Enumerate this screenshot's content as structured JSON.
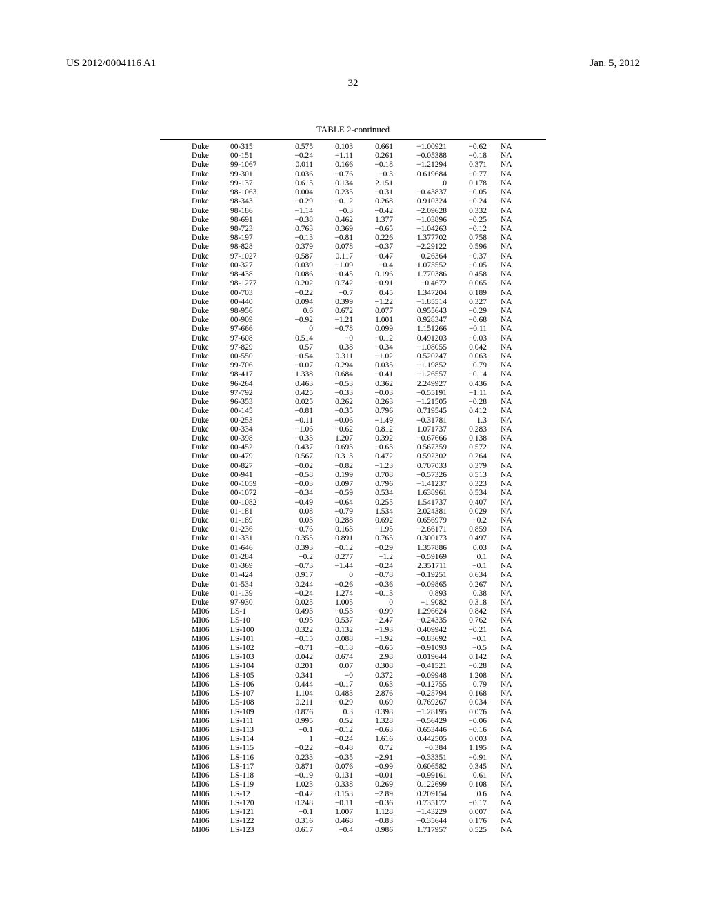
{
  "header": {
    "pub_number": "US 2012/0004116 A1",
    "pub_date": "Jan. 5, 2012"
  },
  "page_number": "32",
  "table": {
    "title": "TABLE 2-continued",
    "rows": [
      [
        "Duke",
        "00-315",
        "0.575",
        "0.103",
        "0.661",
        "−1.00921",
        "−0.62",
        "NA"
      ],
      [
        "Duke",
        "00-151",
        "−0.24",
        "−1.11",
        "0.261",
        "−0.05388",
        "−0.18",
        "NA"
      ],
      [
        "Duke",
        "99-1067",
        "0.011",
        "0.166",
        "−0.18",
        "−1.21294",
        "0.371",
        "NA"
      ],
      [
        "Duke",
        "99-301",
        "0.036",
        "−0.76",
        "−0.3",
        "0.619684",
        "−0.77",
        "NA"
      ],
      [
        "Duke",
        "99-137",
        "0.615",
        "0.134",
        "2.151",
        "0",
        "0.178",
        "NA"
      ],
      [
        "Duke",
        "98-1063",
        "0.004",
        "0.235",
        "−0.31",
        "−0.43837",
        "−0.05",
        "NA"
      ],
      [
        "Duke",
        "98-343",
        "−0.29",
        "−0.12",
        "0.268",
        "0.910324",
        "−0.24",
        "NA"
      ],
      [
        "Duke",
        "98-186",
        "−1.14",
        "−0.3",
        "−0.42",
        "−2.09628",
        "0.332",
        "NA"
      ],
      [
        "Duke",
        "98-691",
        "−0.38",
        "0.462",
        "1.377",
        "−1.03896",
        "−0.25",
        "NA"
      ],
      [
        "Duke",
        "98-723",
        "0.763",
        "0.369",
        "−0.65",
        "−1.04263",
        "−0.12",
        "NA"
      ],
      [
        "Duke",
        "98-197",
        "−0.13",
        "−0.81",
        "0.226",
        "1.377702",
        "0.758",
        "NA"
      ],
      [
        "Duke",
        "98-828",
        "0.379",
        "0.078",
        "−0.37",
        "−2.29122",
        "0.596",
        "NA"
      ],
      [
        "Duke",
        "97-1027",
        "0.587",
        "0.117",
        "−0.47",
        "0.26364",
        "−0.37",
        "NA"
      ],
      [
        "Duke",
        "00-327",
        "0.039",
        "−1.09",
        "−0.4",
        "1.075552",
        "−0.05",
        "NA"
      ],
      [
        "Duke",
        "98-438",
        "0.086",
        "−0.45",
        "0.196",
        "1.770386",
        "0.458",
        "NA"
      ],
      [
        "Duke",
        "98-1277",
        "0.202",
        "0.742",
        "−0.91",
        "−0.4672",
        "0.065",
        "NA"
      ],
      [
        "Duke",
        "00-703",
        "−0.22",
        "−0.7",
        "0.45",
        "1.347204",
        "0.189",
        "NA"
      ],
      [
        "Duke",
        "00-440",
        "0.094",
        "0.399",
        "−1.22",
        "−1.85514",
        "0.327",
        "NA"
      ],
      [
        "Duke",
        "98-956",
        "0.6",
        "0.672",
        "0.077",
        "0.955643",
        "−0.29",
        "NA"
      ],
      [
        "Duke",
        "00-909",
        "−0.92",
        "−1.21",
        "1.001",
        "0.928347",
        "−0.68",
        "NA"
      ],
      [
        "Duke",
        "97-666",
        "0",
        "−0.78",
        "0.099",
        "1.151266",
        "−0.11",
        "NA"
      ],
      [
        "Duke",
        "97-608",
        "0.514",
        "−0",
        "−0.12",
        "0.491203",
        "−0.03",
        "NA"
      ],
      [
        "Duke",
        "97-829",
        "0.57",
        "0.38",
        "−0.34",
        "−1.08055",
        "0.042",
        "NA"
      ],
      [
        "Duke",
        "00-550",
        "−0.54",
        "0.311",
        "−1.02",
        "0.520247",
        "0.063",
        "NA"
      ],
      [
        "Duke",
        "99-706",
        "−0.07",
        "0.294",
        "0.035",
        "−1.19852",
        "0.79",
        "NA"
      ],
      [
        "Duke",
        "98-417",
        "1.338",
        "0.684",
        "−0.41",
        "−1.26557",
        "−0.14",
        "NA"
      ],
      [
        "Duke",
        "96-264",
        "0.463",
        "−0.53",
        "0.362",
        "2.249927",
        "0.436",
        "NA"
      ],
      [
        "Duke",
        "97-792",
        "0.425",
        "−0.33",
        "−0.03",
        "−0.55191",
        "−1.11",
        "NA"
      ],
      [
        "Duke",
        "96-353",
        "0.025",
        "0.262",
        "0.263",
        "−1.21505",
        "−0.28",
        "NA"
      ],
      [
        "Duke",
        "00-145",
        "−0.81",
        "−0.35",
        "0.796",
        "0.719545",
        "0.412",
        "NA"
      ],
      [
        "Duke",
        "00-253",
        "−0.11",
        "−0.06",
        "−1.49",
        "−0.31781",
        "1.3",
        "NA"
      ],
      [
        "Duke",
        "00-334",
        "−1.06",
        "−0.62",
        "0.812",
        "1.071737",
        "0.283",
        "NA"
      ],
      [
        "Duke",
        "00-398",
        "−0.33",
        "1.207",
        "0.392",
        "−0.67666",
        "0.138",
        "NA"
      ],
      [
        "Duke",
        "00-452",
        "0.437",
        "0.693",
        "−0.63",
        "0.567359",
        "0.572",
        "NA"
      ],
      [
        "Duke",
        "00-479",
        "0.567",
        "0.313",
        "0.472",
        "0.592302",
        "0.264",
        "NA"
      ],
      [
        "Duke",
        "00-827",
        "−0.02",
        "−0.82",
        "−1.23",
        "0.707033",
        "0.379",
        "NA"
      ],
      [
        "Duke",
        "00-941",
        "−0.58",
        "0.199",
        "0.708",
        "−0.57326",
        "0.513",
        "NA"
      ],
      [
        "Duke",
        "00-1059",
        "−0.03",
        "0.097",
        "0.796",
        "−1.41237",
        "0.323",
        "NA"
      ],
      [
        "Duke",
        "00-1072",
        "−0.34",
        "−0.59",
        "0.534",
        "1.638961",
        "0.534",
        "NA"
      ],
      [
        "Duke",
        "00-1082",
        "−0.49",
        "−0.64",
        "0.255",
        "1.541737",
        "0.407",
        "NA"
      ],
      [
        "Duke",
        "01-181",
        "0.08",
        "−0.79",
        "1.534",
        "2.024381",
        "0.029",
        "NA"
      ],
      [
        "Duke",
        "01-189",
        "0.03",
        "0.288",
        "0.692",
        "0.656979",
        "−0.2",
        "NA"
      ],
      [
        "Duke",
        "01-236",
        "−0.76",
        "0.163",
        "−1.95",
        "−2.66171",
        "0.859",
        "NA"
      ],
      [
        "Duke",
        "01-331",
        "0.355",
        "0.891",
        "0.765",
        "0.300173",
        "0.497",
        "NA"
      ],
      [
        "Duke",
        "01-646",
        "0.393",
        "−0.12",
        "−0.29",
        "1.357886",
        "0.03",
        "NA"
      ],
      [
        "Duke",
        "01-284",
        "−0.2",
        "0.277",
        "−1.2",
        "−0.59169",
        "0.1",
        "NA"
      ],
      [
        "Duke",
        "01-369",
        "−0.73",
        "−1.44",
        "−0.24",
        "2.351711",
        "−0.1",
        "NA"
      ],
      [
        "Duke",
        "01-424",
        "0.917",
        "0",
        "−0.78",
        "−0.19251",
        "0.634",
        "NA"
      ],
      [
        "Duke",
        "01-534",
        "0.244",
        "−0.26",
        "−0.36",
        "−0.09865",
        "0.267",
        "NA"
      ],
      [
        "Duke",
        "01-139",
        "−0.24",
        "1.274",
        "−0.13",
        "0.893",
        "0.38",
        "NA"
      ],
      [
        "Duke",
        "97-930",
        "0.025",
        "1.005",
        "0",
        "−1.9082",
        "0.318",
        "NA"
      ],
      [
        "MI06",
        "LS-1",
        "0.493",
        "−0.53",
        "−0.99",
        "1.296624",
        "0.842",
        "NA"
      ],
      [
        "MI06",
        "LS-10",
        "−0.95",
        "0.537",
        "−2.47",
        "−0.24335",
        "0.762",
        "NA"
      ],
      [
        "MI06",
        "LS-100",
        "0.322",
        "0.132",
        "−1.93",
        "0.409942",
        "−0.21",
        "NA"
      ],
      [
        "MI06",
        "LS-101",
        "−0.15",
        "0.088",
        "−1.92",
        "−0.83692",
        "−0.1",
        "NA"
      ],
      [
        "MI06",
        "LS-102",
        "−0.71",
        "−0.18",
        "−0.65",
        "−0.91093",
        "−0.5",
        "NA"
      ],
      [
        "MI06",
        "LS-103",
        "0.042",
        "0.674",
        "2.98",
        "0.019644",
        "0.142",
        "NA"
      ],
      [
        "MI06",
        "LS-104",
        "0.201",
        "0.07",
        "0.308",
        "−0.41521",
        "−0.28",
        "NA"
      ],
      [
        "MI06",
        "LS-105",
        "0.341",
        "−0",
        "0.372",
        "−0.09948",
        "1.208",
        "NA"
      ],
      [
        "MI06",
        "LS-106",
        "0.444",
        "−0.17",
        "0.63",
        "−0.12755",
        "0.79",
        "NA"
      ],
      [
        "MI06",
        "LS-107",
        "1.104",
        "0.483",
        "2.876",
        "−0.25794",
        "0.168",
        "NA"
      ],
      [
        "MI06",
        "LS-108",
        "0.211",
        "−0.29",
        "0.69",
        "0.769267",
        "0.034",
        "NA"
      ],
      [
        "MI06",
        "LS-109",
        "0.876",
        "0.3",
        "0.398",
        "−1.28195",
        "0.076",
        "NA"
      ],
      [
        "MI06",
        "LS-111",
        "0.995",
        "0.52",
        "1.328",
        "−0.56429",
        "−0.06",
        "NA"
      ],
      [
        "MI06",
        "LS-113",
        "−0.1",
        "−0.12",
        "−0.63",
        "0.653446",
        "−0.16",
        "NA"
      ],
      [
        "MI06",
        "LS-114",
        "1",
        "−0.24",
        "1.616",
        "0.442505",
        "0.003",
        "NA"
      ],
      [
        "MI06",
        "LS-115",
        "−0.22",
        "−0.48",
        "0.72",
        "−0.384",
        "1.195",
        "NA"
      ],
      [
        "MI06",
        "LS-116",
        "0.233",
        "−0.35",
        "−2.91",
        "−0.33351",
        "−0.91",
        "NA"
      ],
      [
        "MI06",
        "LS-117",
        "0.871",
        "0.076",
        "−0.99",
        "0.606582",
        "0.345",
        "NA"
      ],
      [
        "MI06",
        "LS-118",
        "−0.19",
        "0.131",
        "−0.01",
        "−0.99161",
        "0.61",
        "NA"
      ],
      [
        "MI06",
        "LS-119",
        "1.023",
        "0.338",
        "0.269",
        "0.122699",
        "0.108",
        "NA"
      ],
      [
        "MI06",
        "LS-12",
        "−0.42",
        "0.153",
        "−2.89",
        "0.209154",
        "0.6",
        "NA"
      ],
      [
        "MI06",
        "LS-120",
        "0.248",
        "−0.11",
        "−0.36",
        "0.735172",
        "−0.17",
        "NA"
      ],
      [
        "MI06",
        "LS-121",
        "−0.1",
        "1.007",
        "1.128",
        "−1.43229",
        "0.007",
        "NA"
      ],
      [
        "MI06",
        "LS-122",
        "0.316",
        "0.468",
        "−0.83",
        "−0.35644",
        "0.176",
        "NA"
      ],
      [
        "MI06",
        "LS-123",
        "0.617",
        "−0.4",
        "0.986",
        "1.717957",
        "0.525",
        "NA"
      ]
    ]
  }
}
